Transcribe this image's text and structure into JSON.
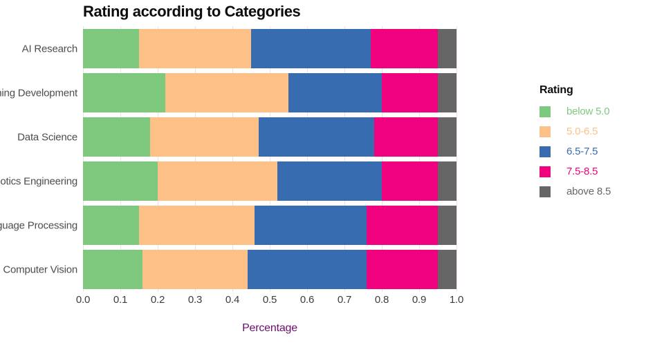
{
  "chart": {
    "title": "Rating according to Categories",
    "xlabel": "Percentage",
    "x_ticks": [
      "0.0",
      "0.1",
      "0.2",
      "0.3",
      "0.4",
      "0.5",
      "0.6",
      "0.7",
      "0.8",
      "0.9",
      "1.0"
    ]
  },
  "legend": {
    "title": "Rating",
    "items": [
      {
        "label": "below 5.0",
        "color": "#7FC97F"
      },
      {
        "label": "5.0-6.5",
        "color": "#FDC086"
      },
      {
        "label": "6.5-7.5",
        "color": "#386CB0"
      },
      {
        "label": "7.5-8.5",
        "color": "#F0027F"
      },
      {
        "label": "above 8.5",
        "color": "#666666"
      }
    ]
  },
  "colors": {
    "background": "#ffffff",
    "gridline": "#f6dbe6",
    "title_text": "#0d0d0d",
    "tick_text": "#3c3c3c",
    "category_text": "#4d4d4d",
    "xlabel_text": "#6e0b6e"
  },
  "chart_data": {
    "type": "bar",
    "orientation": "horizontal",
    "stacked": true,
    "title": "Rating according to Categories",
    "xlabel": "Percentage",
    "ylabel": "",
    "xlim": [
      0,
      1
    ],
    "grid": true,
    "legend_position": "right",
    "categories": [
      "AI Research",
      "ning Development",
      "Data Science",
      "otics Engineering",
      "guage Processing",
      "Computer Vision"
    ],
    "series": [
      {
        "name": "below 5.0",
        "color": "#7FC97F",
        "values": [
          0.15,
          0.22,
          0.18,
          0.2,
          0.15,
          0.16
        ]
      },
      {
        "name": "5.0-6.5",
        "color": "#FDC086",
        "values": [
          0.3,
          0.33,
          0.29,
          0.32,
          0.31,
          0.28
        ]
      },
      {
        "name": "6.5-7.5",
        "color": "#386CB0",
        "values": [
          0.32,
          0.25,
          0.31,
          0.28,
          0.3,
          0.32
        ]
      },
      {
        "name": "7.5-8.5",
        "color": "#F0027F",
        "values": [
          0.18,
          0.15,
          0.17,
          0.15,
          0.19,
          0.19
        ]
      },
      {
        "name": "above 8.5",
        "color": "#666666",
        "values": [
          0.05,
          0.05,
          0.05,
          0.05,
          0.05,
          0.05
        ]
      }
    ]
  }
}
